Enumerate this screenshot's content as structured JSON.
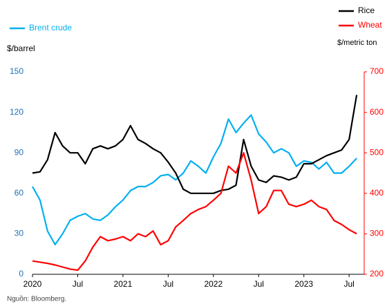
{
  "chart_data": {
    "type": "line",
    "x": [
      "2020-01",
      "2020-02",
      "2020-03",
      "2020-04",
      "2020-05",
      "2020-06",
      "2020-07",
      "2020-08",
      "2020-09",
      "2020-10",
      "2020-11",
      "2020-12",
      "2021-01",
      "2021-02",
      "2021-03",
      "2021-04",
      "2021-05",
      "2021-06",
      "2021-07",
      "2021-08",
      "2021-09",
      "2021-10",
      "2021-11",
      "2021-12",
      "2022-01",
      "2022-02",
      "2022-03",
      "2022-04",
      "2022-05",
      "2022-06",
      "2022-07",
      "2022-08",
      "2022-09",
      "2022-10",
      "2022-11",
      "2022-12",
      "2023-01",
      "2023-02",
      "2023-03",
      "2023-04",
      "2023-05",
      "2023-06",
      "2023-07",
      "2023-08"
    ],
    "series": [
      {
        "name": "Brent crude",
        "color": "#00b0f0",
        "axis": "y",
        "values": [
          65,
          55,
          32,
          22,
          30,
          40,
          43,
          45,
          41,
          40,
          44,
          50,
          55,
          62,
          65,
          65,
          68,
          73,
          74,
          70,
          75,
          84,
          80,
          75,
          87,
          97,
          115,
          105,
          112,
          118,
          104,
          98,
          90,
          93,
          90,
          80,
          84,
          83,
          78,
          83,
          75,
          75,
          80,
          86
        ]
      },
      {
        "name": "Rice",
        "color": "#000000",
        "axis": "y2",
        "values": [
          450,
          453,
          483,
          550,
          517,
          500,
          500,
          473,
          510,
          517,
          510,
          517,
          533,
          567,
          533,
          523,
          510,
          500,
          477,
          450,
          410,
          400,
          400,
          400,
          400,
          407,
          410,
          420,
          533,
          467,
          433,
          427,
          443,
          440,
          433,
          440,
          473,
          473,
          483,
          493,
          500,
          507,
          533,
          643
        ]
      },
      {
        "name": "Wheat",
        "color": "#ff0000",
        "axis": "y2",
        "values": [
          233,
          230,
          227,
          223,
          218,
          213,
          210,
          233,
          267,
          293,
          283,
          287,
          293,
          283,
          300,
          293,
          307,
          273,
          283,
          317,
          333,
          350,
          360,
          367,
          383,
          400,
          467,
          450,
          500,
          433,
          350,
          367,
          407,
          407,
          373,
          367,
          373,
          383,
          367,
          360,
          333,
          323,
          310,
          300
        ]
      }
    ],
    "xlim": [
      "2020-01",
      "2023-09"
    ],
    "xticks": [
      {
        "value": "2020-01",
        "label": "2020"
      },
      {
        "value": "2020-07",
        "label": "Jul"
      },
      {
        "value": "2021-01",
        "label": "2021"
      },
      {
        "value": "2021-07",
        "label": "Jul"
      },
      {
        "value": "2022-01",
        "label": "2022"
      },
      {
        "value": "2022-07",
        "label": "Jul"
      },
      {
        "value": "2023-01",
        "label": "2023"
      },
      {
        "value": "2023-07",
        "label": "Jul"
      }
    ],
    "ylim": [
      0,
      150
    ],
    "yticks": [
      0,
      30,
      60,
      90,
      120,
      150
    ],
    "y2lim": [
      200,
      700
    ],
    "y2ticks": [
      200,
      300,
      400,
      500,
      600,
      700
    ],
    "ylabel": "$/barrel",
    "y2label": "$/metric ton",
    "source": "Nguồn: Bloomberg."
  }
}
